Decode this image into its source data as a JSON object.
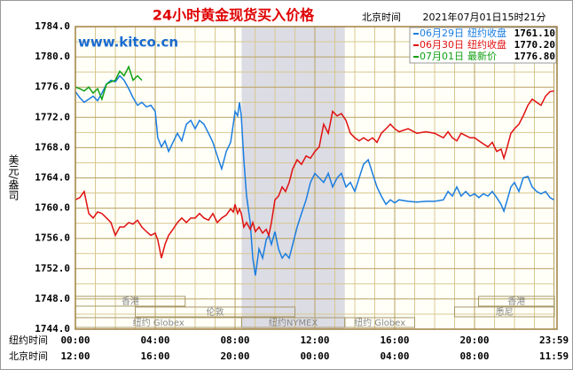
{
  "chart_data": {
    "type": "line",
    "title": "24小时黄金现货买入价格",
    "time_zone_label": "北京时间",
    "timestamp": "2021年07月01日15时21分",
    "watermark": "www.kitco.cn",
    "y_label": "美元/盎司",
    "x_label": "纽约时间",
    "x2_label": "北京时间",
    "xlim": [
      0,
      24
    ],
    "xticks": [
      {
        "value": 0,
        "label": "00:00"
      },
      {
        "value": 4,
        "label": "04:00"
      },
      {
        "value": 8,
        "label": "08:00"
      },
      {
        "value": 12,
        "label": "12:00"
      },
      {
        "value": 16,
        "label": "16:00"
      },
      {
        "value": 20,
        "label": "20:00"
      },
      {
        "value": 23.98,
        "label": "23:59"
      }
    ],
    "x2_tick_labels": [
      "12:00",
      "16:00",
      "20:00",
      "00:00",
      "04:00",
      "08:00",
      "11:59"
    ],
    "x_minor_ticks": [
      1,
      2,
      3,
      5,
      6,
      7,
      9,
      10,
      11,
      13,
      14,
      15,
      17,
      18,
      19,
      21,
      22,
      23
    ],
    "ylim": [
      1744,
      1784
    ],
    "yticks": [
      {
        "value": 1744,
        "label": "1744.0"
      },
      {
        "value": 1748,
        "label": "1748.0"
      },
      {
        "value": 1752,
        "label": "1752.0"
      },
      {
        "value": 1756,
        "label": "1756.0"
      },
      {
        "value": 1760,
        "label": "1760.0"
      },
      {
        "value": 1764,
        "label": "1764.0"
      },
      {
        "value": 1768,
        "label": "1768.0"
      },
      {
        "value": 1772,
        "label": "1772.0"
      },
      {
        "value": 1776,
        "label": "1776.0"
      },
      {
        "value": 1780,
        "label": "1780.0"
      },
      {
        "value": 1784,
        "label": "1784.0"
      }
    ],
    "y_minor_ticks": [
      1746,
      1750,
      1754,
      1758,
      1762,
      1766,
      1770,
      1774,
      1778,
      1782
    ],
    "grid": true,
    "shade": [
      8.33,
      13.5
    ],
    "sessions": [
      {
        "label": "香港",
        "start": 0,
        "end": 5.5
      },
      {
        "label": "香港",
        "start": 20.2,
        "end": 24
      },
      {
        "label": "伦敦",
        "start": 3,
        "end": 11
      },
      {
        "label": "悉尼",
        "start": 19,
        "end": 24
      },
      {
        "label": "纽约 Globex",
        "start": 0,
        "end": 8.33
      },
      {
        "label": "纽约NYMEX",
        "start": 8.33,
        "end": 13.5
      },
      {
        "label": "纽约 Globex",
        "start": 13.5,
        "end": 17
      }
    ],
    "x": [
      0,
      0.22,
      0.44,
      0.67,
      0.89,
      1.11,
      1.33,
      1.56,
      1.78,
      2,
      2.22,
      2.44,
      2.67,
      2.89,
      3.11,
      3.33,
      3.56,
      3.78,
      4,
      4.13,
      4.31,
      4.49,
      4.67,
      4.89,
      5.11,
      5.33,
      5.56,
      5.78,
      6,
      6.22,
      6.44,
      6.67,
      6.89,
      7.11,
      7.33,
      7.56,
      7.78,
      7.91,
      8,
      8.13,
      8.22,
      8.31,
      8.44,
      8.58,
      8.76,
      8.89,
      9.02,
      9.2,
      9.38,
      9.56,
      9.69,
      9.82,
      10,
      10.18,
      10.36,
      10.53,
      10.71,
      10.89,
      11.11,
      11.33,
      11.56,
      11.78,
      12,
      12.22,
      12.44,
      12.67,
      12.89,
      13.11,
      13.33,
      13.56,
      13.78,
      14,
      14.22,
      14.44,
      14.67,
      14.89,
      15.11,
      15.33,
      15.56,
      15.78,
      16,
      16.22,
      16.67,
      17.11,
      17.56,
      18,
      18.44,
      18.67,
      18.89,
      19.11,
      19.33,
      19.56,
      19.78,
      20,
      20.22,
      20.44,
      20.67,
      20.89,
      21.11,
      21.33,
      21.47,
      21.64,
      21.82,
      22,
      22.22,
      22.44,
      22.67,
      22.89,
      23.11,
      23.33,
      23.56,
      23.78,
      23.98
    ],
    "series": [
      {
        "name": "06月29日",
        "close_label": "纽约收盘",
        "close_value": "1761.10",
        "color": "#1a7de0",
        "values": [
          1775.4,
          1774.6,
          1774.0,
          1774.4,
          1774.8,
          1774.2,
          1775.2,
          1776.4,
          1776.9,
          1776.7,
          1777.5,
          1776.9,
          1775.8,
          1774.6,
          1773.6,
          1774.0,
          1773.4,
          1773.6,
          1772.8,
          1769.3,
          1768.1,
          1768.9,
          1767.5,
          1768.7,
          1769.9,
          1768.9,
          1771.1,
          1771.6,
          1770.5,
          1771.6,
          1771.1,
          1769.9,
          1768.7,
          1766.9,
          1765.2,
          1767.5,
          1768.7,
          1771.1,
          1772.8,
          1772.2,
          1774.0,
          1772.2,
          1766.4,
          1761.6,
          1758.1,
          1753.4,
          1751.1,
          1754.6,
          1753.4,
          1755.8,
          1756.4,
          1755.2,
          1756.9,
          1754.6,
          1753.4,
          1754.0,
          1753.4,
          1755.2,
          1757.5,
          1759.3,
          1761.1,
          1763.4,
          1764.6,
          1764.0,
          1763.4,
          1764.6,
          1762.8,
          1764.0,
          1764.6,
          1762.8,
          1763.4,
          1762.2,
          1764.0,
          1765.8,
          1766.4,
          1764.6,
          1762.8,
          1761.6,
          1760.5,
          1761.1,
          1760.7,
          1761.1,
          1760.9,
          1760.8,
          1760.9,
          1760.9,
          1761.1,
          1762.2,
          1761.6,
          1762.8,
          1761.6,
          1762.2,
          1761.6,
          1761.9,
          1761.4,
          1761.9,
          1761.6,
          1762.2,
          1761.4,
          1760.5,
          1759.6,
          1761.1,
          1762.8,
          1763.4,
          1762.2,
          1764.0,
          1764.2,
          1762.8,
          1762.2,
          1761.9,
          1762.2,
          1761.4,
          1761.1
        ]
      },
      {
        "name": "06月30日",
        "close_label": "纽约收盘",
        "close_value": "1770.20",
        "color": "#e01010",
        "values": [
          1761.1,
          1761.4,
          1762.2,
          1759.3,
          1758.7,
          1759.5,
          1759.3,
          1758.7,
          1758.1,
          1756.4,
          1757.5,
          1757.5,
          1758.1,
          1757.9,
          1758.4,
          1757.5,
          1756.9,
          1756.4,
          1756.7,
          1755.8,
          1753.4,
          1755.2,
          1756.4,
          1757.2,
          1758.1,
          1758.7,
          1758.1,
          1758.7,
          1758.7,
          1759.3,
          1758.7,
          1758.4,
          1759.3,
          1758.1,
          1758.7,
          1759.1,
          1759.9,
          1759.5,
          1760.5,
          1759.3,
          1759.9,
          1759.3,
          1757.5,
          1758.1,
          1757.2,
          1758.1,
          1756.9,
          1757.5,
          1756.7,
          1757.2,
          1756.4,
          1758.1,
          1761.1,
          1761.6,
          1762.8,
          1762.2,
          1763.4,
          1765.2,
          1766.4,
          1765.8,
          1766.9,
          1766.6,
          1767.5,
          1768.1,
          1771.1,
          1769.9,
          1772.8,
          1772.2,
          1772.5,
          1771.6,
          1769.9,
          1769.3,
          1768.9,
          1769.3,
          1768.9,
          1769.3,
          1768.7,
          1769.9,
          1770.5,
          1771.1,
          1770.5,
          1770.1,
          1770.5,
          1769.9,
          1770.1,
          1769.9,
          1769.3,
          1770.1,
          1769.3,
          1768.9,
          1769.9,
          1769.6,
          1769.3,
          1769.3,
          1768.9,
          1768.5,
          1768.1,
          1768.7,
          1767.5,
          1767.8,
          1766.6,
          1768.1,
          1769.9,
          1770.5,
          1771.1,
          1772.2,
          1773.6,
          1774.4,
          1774.0,
          1773.6,
          1774.8,
          1775.4,
          1775.5
        ]
      },
      {
        "name": "07月01日",
        "close_label": "最新价",
        "close_value": "1776.80",
        "color": "#10a010",
        "x": [
          0,
          0.22,
          0.44,
          0.67,
          0.89,
          1.11,
          1.33,
          1.56,
          1.78,
          2,
          2.22,
          2.44,
          2.67,
          2.89,
          3.11,
          3.33
        ],
        "values": [
          1776.0,
          1775.8,
          1775.5,
          1776.0,
          1775.2,
          1775.8,
          1774.4,
          1776.4,
          1776.7,
          1776.9,
          1778.1,
          1777.5,
          1778.7,
          1776.9,
          1777.5,
          1776.9
        ]
      }
    ]
  }
}
